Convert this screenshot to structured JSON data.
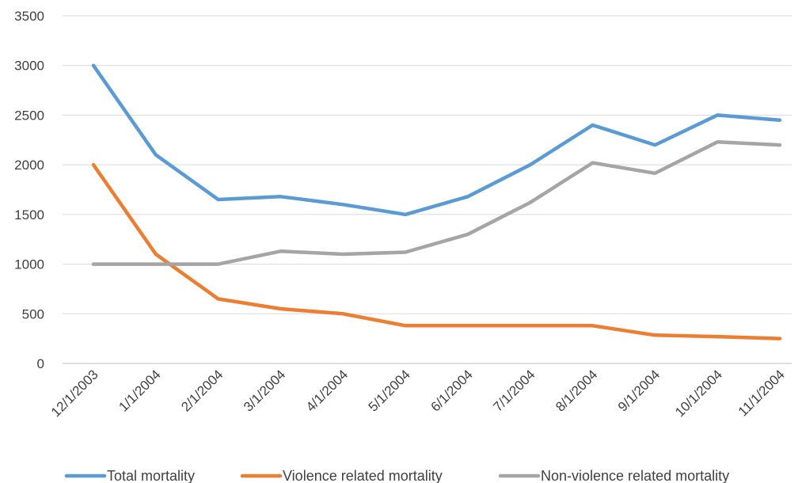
{
  "chart_data": {
    "type": "line",
    "title": "",
    "xlabel": "",
    "ylabel": "",
    "categories": [
      "12/1/2003",
      "1/1/2004",
      "2/1/2004",
      "3/1/2004",
      "4/1/2004",
      "5/1/2004",
      "6/1/2004",
      "7/1/2004",
      "8/1/2004",
      "9/1/2004",
      "10/1/2004",
      "11/1/2004"
    ],
    "ylim": [
      0,
      3500
    ],
    "yticks": [
      "0",
      "500",
      "1000",
      "1500",
      "2000",
      "2500",
      "3000",
      "3500"
    ],
    "grid": true,
    "legend": "bottom",
    "series": [
      {
        "name": "Total mortality",
        "color": "#5b9bd5",
        "values": [
          3000,
          2100,
          1650,
          1680,
          1600,
          1500,
          1680,
          2000,
          2400,
          2200,
          2500,
          2450
        ]
      },
      {
        "name": "Violence related mortality",
        "color": "#ed7d31",
        "values": [
          2000,
          1100,
          650,
          550,
          500,
          380,
          380,
          380,
          380,
          285,
          270,
          250
        ]
      },
      {
        "name": "Non-violence related mortality",
        "color": "#a5a5a5",
        "values": [
          1000,
          1000,
          1000,
          1130,
          1100,
          1120,
          1300,
          1620,
          2020,
          1915,
          2230,
          2200
        ]
      }
    ]
  }
}
